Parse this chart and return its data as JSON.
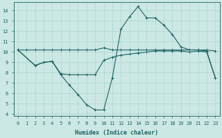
{
  "xlabel": "Humidex (Indice chaleur)",
  "bg_color": "#cce8e4",
  "grid_color": "#b0d8d2",
  "line_color": "#1a6060",
  "xlim": [
    -0.5,
    23.5
  ],
  "ylim": [
    3.8,
    14.8
  ],
  "yticks": [
    4,
    5,
    6,
    7,
    8,
    9,
    10,
    11,
    12,
    13,
    14
  ],
  "xticks": [
    0,
    1,
    2,
    3,
    4,
    5,
    6,
    7,
    8,
    9,
    10,
    11,
    12,
    13,
    14,
    15,
    16,
    17,
    18,
    19,
    20,
    21,
    22,
    23
  ],
  "line1_x": [
    0,
    1,
    2,
    3,
    4,
    5,
    6,
    7,
    8,
    9,
    10,
    11,
    12,
    13,
    14,
    15,
    16,
    17,
    18,
    19,
    20,
    21,
    22,
    23
  ],
  "line1_y": [
    10.2,
    10.2,
    10.2,
    10.2,
    10.2,
    10.2,
    10.2,
    10.2,
    10.2,
    10.2,
    10.4,
    10.2,
    10.2,
    10.2,
    10.2,
    10.2,
    10.2,
    10.2,
    10.2,
    10.2,
    10.2,
    10.2,
    10.2,
    10.1
  ],
  "line2_x": [
    0,
    2,
    3,
    4,
    5,
    6,
    7,
    8,
    9,
    10,
    11,
    12,
    13,
    14,
    15,
    16,
    17,
    18,
    19,
    20,
    21,
    22,
    23
  ],
  "line2_y": [
    10.2,
    8.7,
    9.0,
    9.1,
    7.9,
    7.8,
    7.8,
    7.8,
    7.8,
    9.2,
    9.5,
    9.7,
    9.8,
    9.9,
    10.0,
    10.1,
    10.1,
    10.1,
    10.1,
    10.0,
    10.1,
    10.0,
    7.5
  ],
  "line3_x": [
    0,
    2,
    3,
    4,
    5,
    6,
    7,
    8,
    9,
    10,
    11,
    12,
    13,
    14,
    15,
    16,
    17,
    18,
    19,
    20,
    21,
    22,
    23
  ],
  "line3_y": [
    10.2,
    8.7,
    9.0,
    9.1,
    7.8,
    6.8,
    5.9,
    4.9,
    4.4,
    4.4,
    7.5,
    12.2,
    13.4,
    14.4,
    13.3,
    13.3,
    12.6,
    11.7,
    10.5,
    10.2,
    10.2,
    10.1,
    7.5
  ]
}
